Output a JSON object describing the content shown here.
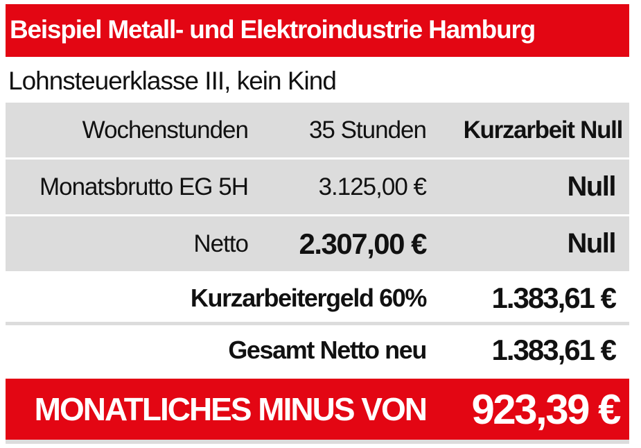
{
  "header": {
    "title": "Beispiel Metall- und Elektroindustrie Hamburg",
    "subtitle": "Lohnsteuerklasse III, kein Kind"
  },
  "rows": [
    {
      "label": "Wochenstunden",
      "value": "35 Stunden",
      "kurzarbeit": "Kurzarbeit Null"
    },
    {
      "label": "Monatsbrutto EG 5H",
      "value": "3.125,00 €",
      "kurzarbeit": "Null"
    },
    {
      "label": "Netto",
      "value": "2.307,00  €",
      "kurzarbeit": "Null"
    }
  ],
  "kurzarbeitergeld": {
    "label": "Kurzarbeitergeld 60%",
    "amount": "1.383,61 €"
  },
  "gesamt": {
    "label": "Gesamt Netto neu",
    "amount": "1.383,61 €"
  },
  "minus": {
    "label": "MONATLICHES MINUS VON",
    "amount": "923,39 €"
  },
  "colors": {
    "accent_red": "#e30613",
    "row_gray": "#dcdcdc",
    "text": "#111111"
  }
}
